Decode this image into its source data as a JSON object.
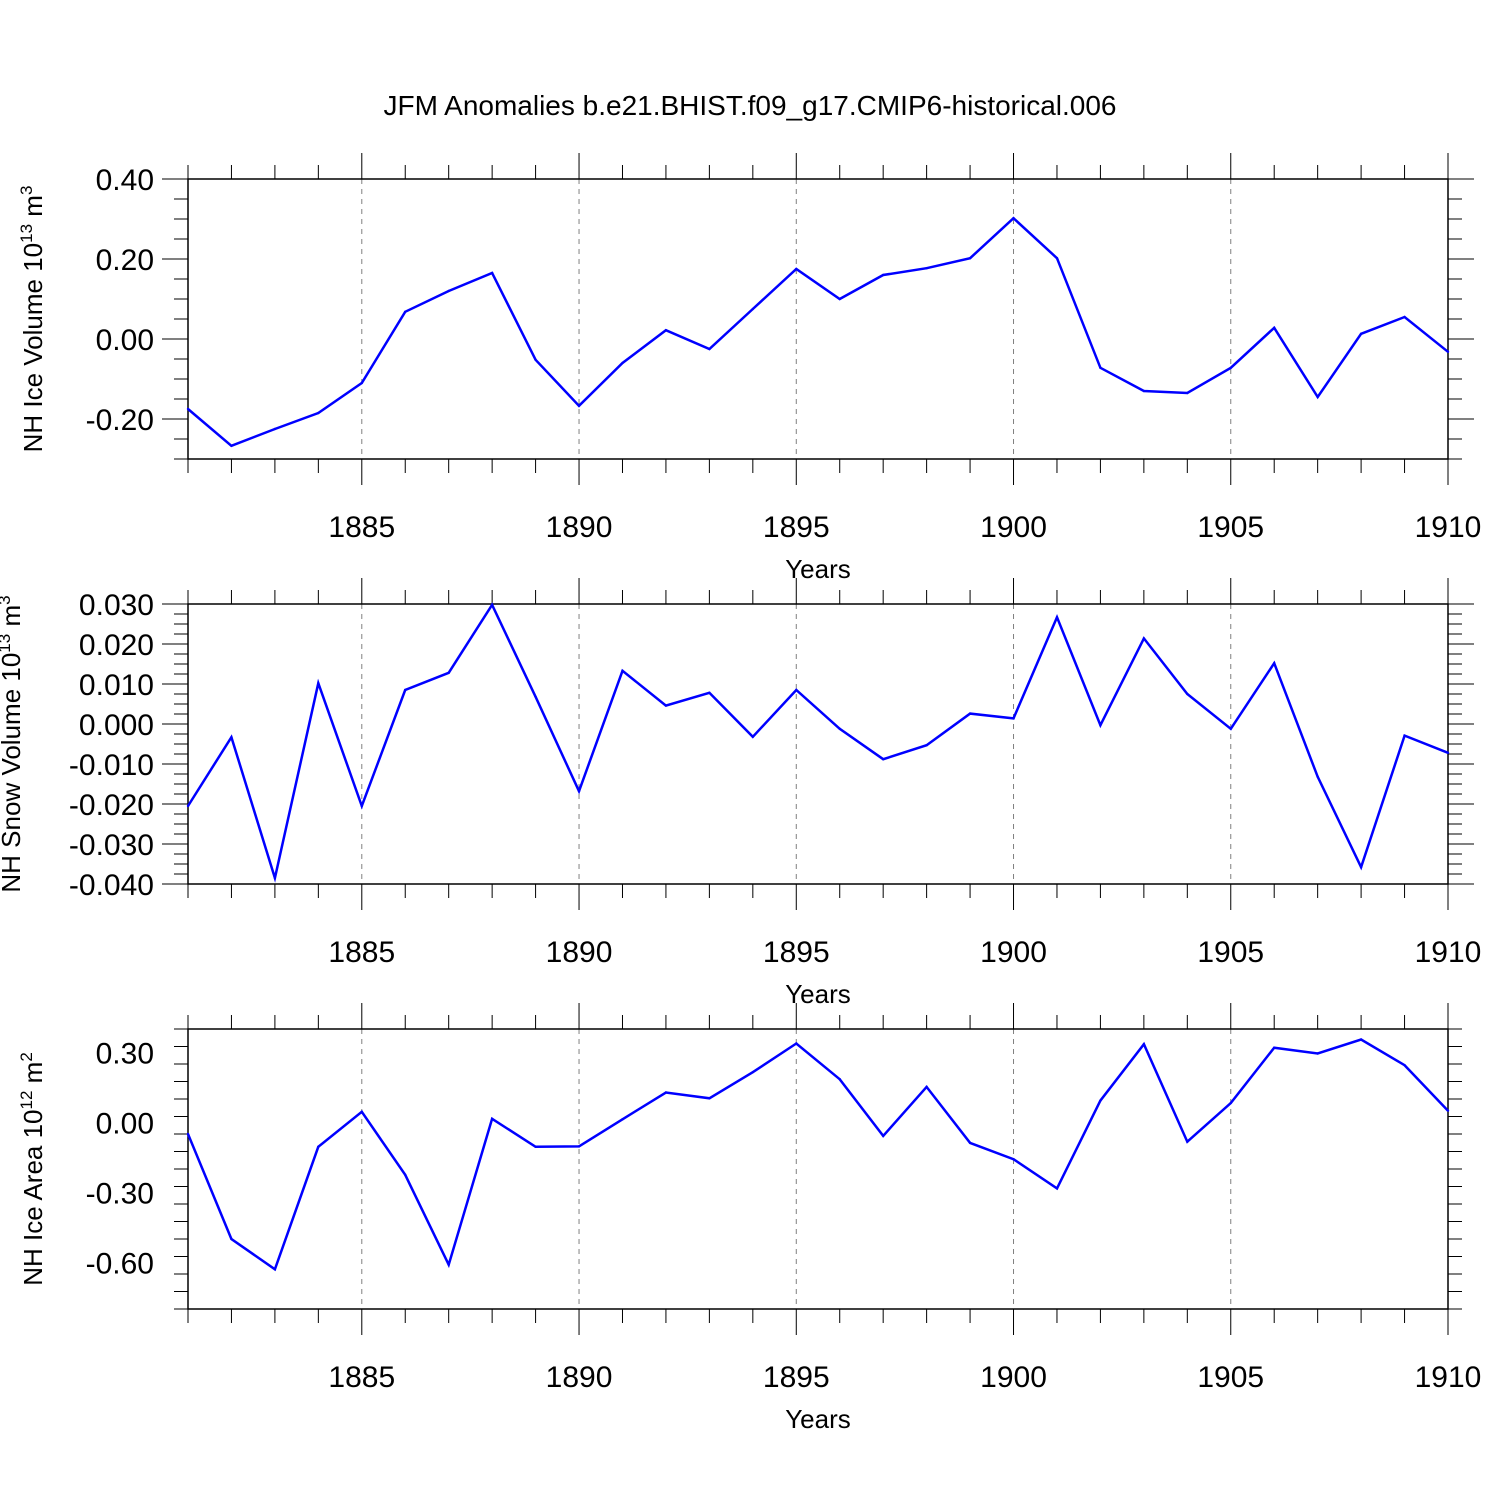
{
  "title": "JFM Anomalies b.e21.BHIST.f09_g17.CMIP6-historical.006",
  "colors": {
    "series": "#0000ff",
    "axis": "#000000",
    "grid": "#808080"
  },
  "chart_data": [
    {
      "type": "line",
      "ylabel": {
        "main": "NH Ice Volume 10",
        "exp": "13",
        "tail": " m",
        "unit_exp": "3"
      },
      "xlabel": "Years",
      "xlim": [
        1881,
        1910
      ],
      "ylim": [
        -0.3,
        0.4
      ],
      "yticks": [
        -0.2,
        0.0,
        0.2,
        0.4
      ],
      "ytick_labels": [
        "-0.20",
        "0.00",
        "0.20",
        "0.40"
      ],
      "xticks": [
        1885,
        1890,
        1895,
        1900,
        1905,
        1910
      ],
      "xtick_labels": [
        "1885",
        "1890",
        "1895",
        "1900",
        "1905",
        "1910"
      ],
      "grid": "vertical dashed at major x ticks",
      "x": [
        1881,
        1882,
        1883,
        1884,
        1885,
        1886,
        1887,
        1888,
        1889,
        1890,
        1891,
        1892,
        1893,
        1894,
        1895,
        1896,
        1897,
        1898,
        1899,
        1900,
        1901,
        1902,
        1903,
        1904,
        1905,
        1906,
        1907,
        1908,
        1909,
        1910
      ],
      "values": [
        -0.175,
        -0.267,
        -0.225,
        -0.185,
        -0.11,
        0.068,
        0.12,
        0.165,
        -0.052,
        -0.167,
        -0.06,
        0.022,
        -0.025,
        0.075,
        0.175,
        0.1,
        0.16,
        0.177,
        0.202,
        0.302,
        0.202,
        -0.072,
        -0.13,
        -0.135,
        -0.072,
        0.028,
        -0.145,
        0.013,
        0.055,
        -0.032
      ]
    },
    {
      "type": "line",
      "ylabel": {
        "main": "NH Snow Volume 10",
        "exp": "13",
        "tail": " m",
        "unit_exp": "3"
      },
      "xlabel": "Years",
      "xlim": [
        1881,
        1910
      ],
      "ylim": [
        -0.04,
        0.03
      ],
      "yticks": [
        -0.04,
        -0.03,
        -0.02,
        -0.01,
        0.0,
        0.01,
        0.02,
        0.03
      ],
      "ytick_labels": [
        "-0.040",
        "-0.030",
        "-0.020",
        "-0.010",
        "0.000",
        "0.010",
        "0.020",
        "0.030"
      ],
      "xticks": [
        1885,
        1890,
        1895,
        1900,
        1905,
        1910
      ],
      "xtick_labels": [
        "1885",
        "1890",
        "1895",
        "1900",
        "1905",
        "1910"
      ],
      "grid": "vertical dashed at major x ticks",
      "x": [
        1881,
        1882,
        1883,
        1884,
        1885,
        1886,
        1887,
        1888,
        1889,
        1890,
        1891,
        1892,
        1893,
        1894,
        1895,
        1896,
        1897,
        1898,
        1899,
        1900,
        1901,
        1902,
        1903,
        1904,
        1905,
        1906,
        1907,
        1908,
        1909,
        1910
      ],
      "values": [
        -0.0205,
        -0.0033,
        -0.0385,
        0.0102,
        -0.0205,
        0.0085,
        0.0128,
        0.0298,
        0.0068,
        -0.0168,
        0.0133,
        0.0046,
        0.0078,
        -0.0032,
        0.0085,
        -0.0012,
        -0.0088,
        -0.0053,
        0.0026,
        0.0014,
        0.0267,
        -0.0003,
        0.0214,
        0.0075,
        -0.0012,
        0.0152,
        -0.0132,
        -0.0358,
        -0.0029,
        -0.0072
      ]
    },
    {
      "type": "line",
      "ylabel": {
        "main": "NH Ice Area 10",
        "exp": "12",
        "tail": " m",
        "unit_exp": "2"
      },
      "xlabel": "Years",
      "xlim": [
        1881,
        1910
      ],
      "ylim": [
        -0.8,
        0.4
      ],
      "yticks": [
        -0.6,
        -0.3,
        0.0,
        0.3
      ],
      "ytick_labels": [
        "-0.60",
        "-0.30",
        "0.00",
        "0.30"
      ],
      "xticks": [
        1885,
        1890,
        1895,
        1900,
        1905,
        1910
      ],
      "xtick_labels": [
        "1885",
        "1890",
        "1895",
        "1900",
        "1905",
        "1910"
      ],
      "grid": "vertical dashed at major x ticks",
      "x": [
        1881,
        1882,
        1883,
        1884,
        1885,
        1886,
        1887,
        1888,
        1889,
        1890,
        1891,
        1892,
        1893,
        1894,
        1895,
        1896,
        1897,
        1898,
        1899,
        1900,
        1901,
        1902,
        1903,
        1904,
        1905,
        1906,
        1907,
        1908,
        1909,
        1910
      ],
      "values": [
        -0.05,
        -0.5,
        -0.63,
        -0.105,
        0.045,
        -0.225,
        -0.61,
        0.015,
        -0.105,
        -0.103,
        0.013,
        0.128,
        0.103,
        0.215,
        0.338,
        0.185,
        -0.058,
        0.152,
        -0.088,
        -0.158,
        -0.283,
        0.093,
        0.335,
        -0.083,
        0.083,
        0.32,
        0.295,
        0.355,
        0.245,
        0.05
      ]
    }
  ]
}
